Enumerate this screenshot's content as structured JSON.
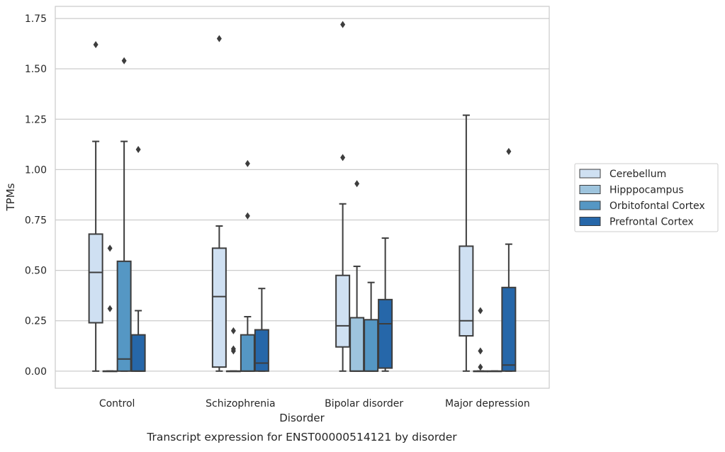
{
  "chart_data": {
    "type": "boxplot",
    "caption": "Transcript expression for ENST00000514121 by disorder",
    "xlabel": "Disorder",
    "ylabel": "TPMs",
    "ylim": [
      -0.085,
      1.81
    ],
    "yticks": [
      0.0,
      0.25,
      0.5,
      0.75,
      1.0,
      1.25,
      1.5,
      1.75
    ],
    "ytick_labels": [
      "0.00",
      "0.25",
      "0.50",
      "0.75",
      "1.00",
      "1.25",
      "1.50",
      "1.75"
    ],
    "categories": [
      "Control",
      "Schizophrenia",
      "Bipolar disorder",
      "Major depression"
    ],
    "grid": "horizontal",
    "legend_position": "right",
    "series": [
      {
        "name": "Cerebellum",
        "color": "#cfe0f2",
        "boxes": [
          {
            "whislo": 0.0,
            "q1": 0.24,
            "med": 0.49,
            "q3": 0.68,
            "whishi": 1.14,
            "fliers": [
              1.62
            ]
          },
          {
            "whislo": 0.0,
            "q1": 0.02,
            "med": 0.37,
            "q3": 0.61,
            "whishi": 0.72,
            "fliers": [
              1.65
            ]
          },
          {
            "whislo": 0.0,
            "q1": 0.12,
            "med": 0.225,
            "q3": 0.475,
            "whishi": 0.83,
            "fliers": [
              1.06,
              1.72
            ]
          },
          {
            "whislo": 0.0,
            "q1": 0.175,
            "med": 0.25,
            "q3": 0.62,
            "whishi": 1.27,
            "fliers": []
          }
        ]
      },
      {
        "name": "Hipppocampus",
        "color": "#9ec4dd",
        "boxes": [
          {
            "whislo": 0.0,
            "q1": 0.0,
            "med": 0.0,
            "q3": 0.0,
            "whishi": 0.0,
            "fliers": [
              0.31,
              0.61
            ]
          },
          {
            "whislo": 0.0,
            "q1": 0.0,
            "med": 0.0,
            "q3": 0.0,
            "whishi": 0.0,
            "fliers": [
              0.1,
              0.11,
              0.2
            ]
          },
          {
            "whislo": 0.0,
            "q1": 0.0,
            "med": 0.0,
            "q3": 0.265,
            "whishi": 0.52,
            "fliers": [
              0.93
            ]
          },
          {
            "whislo": 0.0,
            "q1": 0.0,
            "med": 0.0,
            "q3": 0.0,
            "whishi": 0.0,
            "fliers": [
              0.02,
              0.1,
              0.3
            ]
          }
        ]
      },
      {
        "name": "Orbitofontal Cortex",
        "color": "#5597c4",
        "boxes": [
          {
            "whislo": 0.0,
            "q1": 0.0,
            "med": 0.06,
            "q3": 0.545,
            "whishi": 1.14,
            "fliers": [
              1.54
            ]
          },
          {
            "whislo": 0.0,
            "q1": 0.0,
            "med": 0.0,
            "q3": 0.18,
            "whishi": 0.27,
            "fliers": [
              0.77,
              1.03
            ]
          },
          {
            "whislo": 0.0,
            "q1": 0.0,
            "med": 0.0,
            "q3": 0.255,
            "whishi": 0.44,
            "fliers": []
          },
          {
            "whislo": 0.0,
            "q1": 0.0,
            "med": 0.0,
            "q3": 0.0,
            "whishi": 0.0,
            "fliers": []
          }
        ]
      },
      {
        "name": "Prefrontal Cortex",
        "color": "#2667a9",
        "boxes": [
          {
            "whislo": 0.0,
            "q1": 0.0,
            "med": 0.0,
            "q3": 0.18,
            "whishi": 0.3,
            "fliers": [
              1.1
            ]
          },
          {
            "whislo": 0.0,
            "q1": 0.0,
            "med": 0.04,
            "q3": 0.205,
            "whishi": 0.41,
            "fliers": []
          },
          {
            "whislo": 0.0,
            "q1": 0.015,
            "med": 0.235,
            "q3": 0.355,
            "whishi": 0.66,
            "fliers": []
          },
          {
            "whislo": 0.0,
            "q1": 0.0,
            "med": 0.03,
            "q3": 0.415,
            "whishi": 0.63,
            "fliers": [
              1.09
            ]
          }
        ]
      }
    ]
  }
}
